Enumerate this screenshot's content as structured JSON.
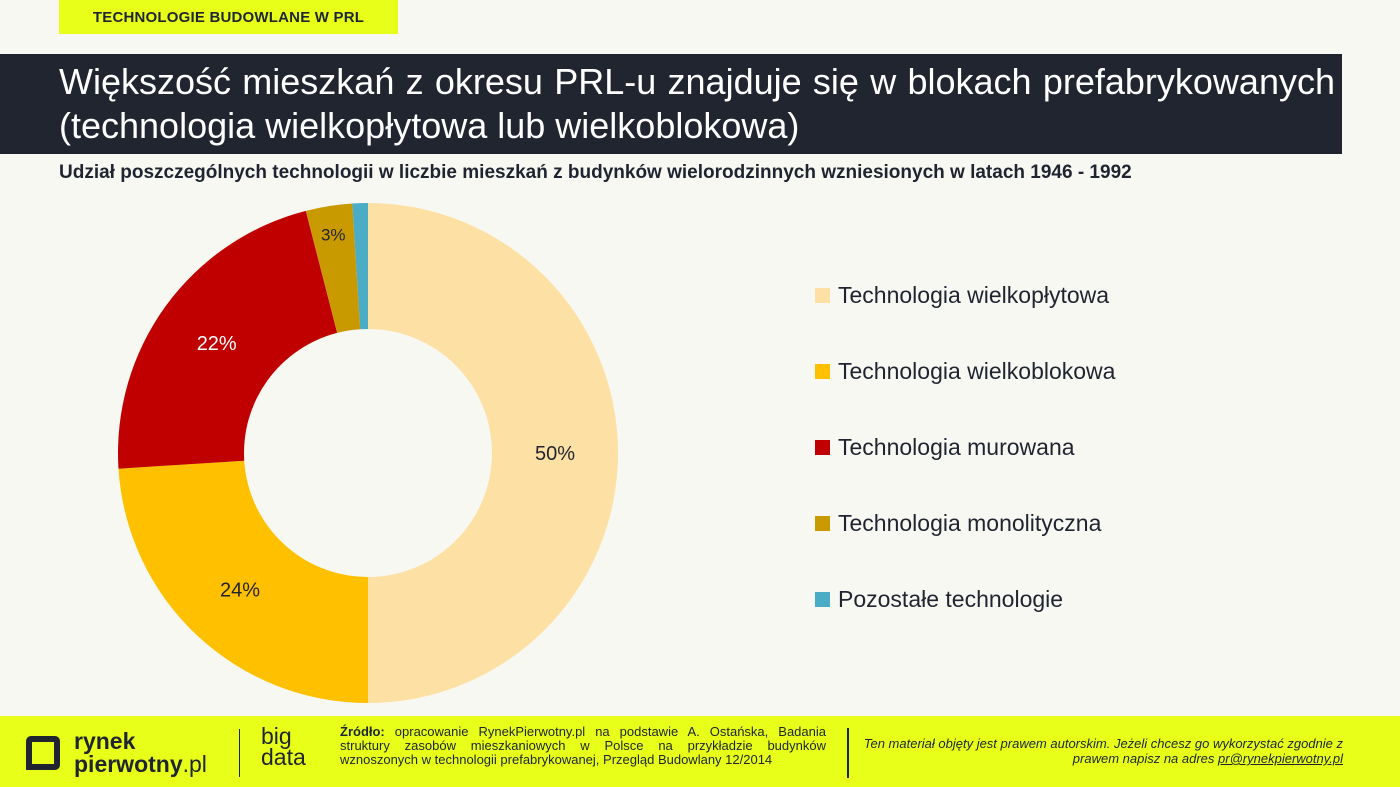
{
  "tag_label": "TECHNOLOGIE BUDOWLANE W PRL",
  "title": "Większość mieszkań z okresu PRL-u znajduje się w blokach prefabrykowanych (technologia wielkopłytowa lub wielkoblokowa)",
  "subtitle": "Udział poszczególnych technologii w liczbie mieszkań z budynków wielorodzinnych wzniesionych w latach 1946 - 1992",
  "chart_data": {
    "type": "pie",
    "donut": true,
    "title": "Udział poszczególnych technologii w liczbie mieszkań z budynków wielorodzinnych wzniesionych w latach 1946 - 1992",
    "legend_position": "right",
    "slices": [
      {
        "label": "Technologia wielkopłytowa",
        "value": 50,
        "value_label": "50%",
        "color": "#fde0a3",
        "text_color": "#1f2430"
      },
      {
        "label": "Technologia wielkoblokowa",
        "value": 24,
        "value_label": "24%",
        "color": "#ffc000",
        "text_color": "#1f2430"
      },
      {
        "label": "Technologia murowana",
        "value": 22,
        "value_label": "22%",
        "color": "#c00000",
        "text_color": "#ffffff"
      },
      {
        "label": "Technologia monolityczna",
        "value": 3,
        "value_label": "3%",
        "color": "#c99a00",
        "text_color": "#1f2430"
      },
      {
        "label": "Pozostałe technologie",
        "value": 1,
        "value_label": "",
        "color": "#4bacc6",
        "text_color": "#1f2430"
      }
    ]
  },
  "footer": {
    "logo_line1": "rynek",
    "logo_line2": "pierwotny",
    "logo_suffix": ".pl",
    "bigdata_line1": "big",
    "bigdata_line2": "data",
    "source_label": "Źródło:",
    "source_text": "opracowanie RynekPierwotny.pl na podstawie A. Ostańska, Badania struktury zasobów mieszkaniowych w Polsce na przykładzie budynków wznoszonych w technologii prefabrykowanej, Przegląd Budowlany 12/2014",
    "copyright_text": "Ten materiał objęty jest prawem autorskim. Jeżeli chcesz go wykorzystać zgodnie z prawem napisz na adres",
    "copyright_email": "pr@rynekpierwotny.pl"
  }
}
